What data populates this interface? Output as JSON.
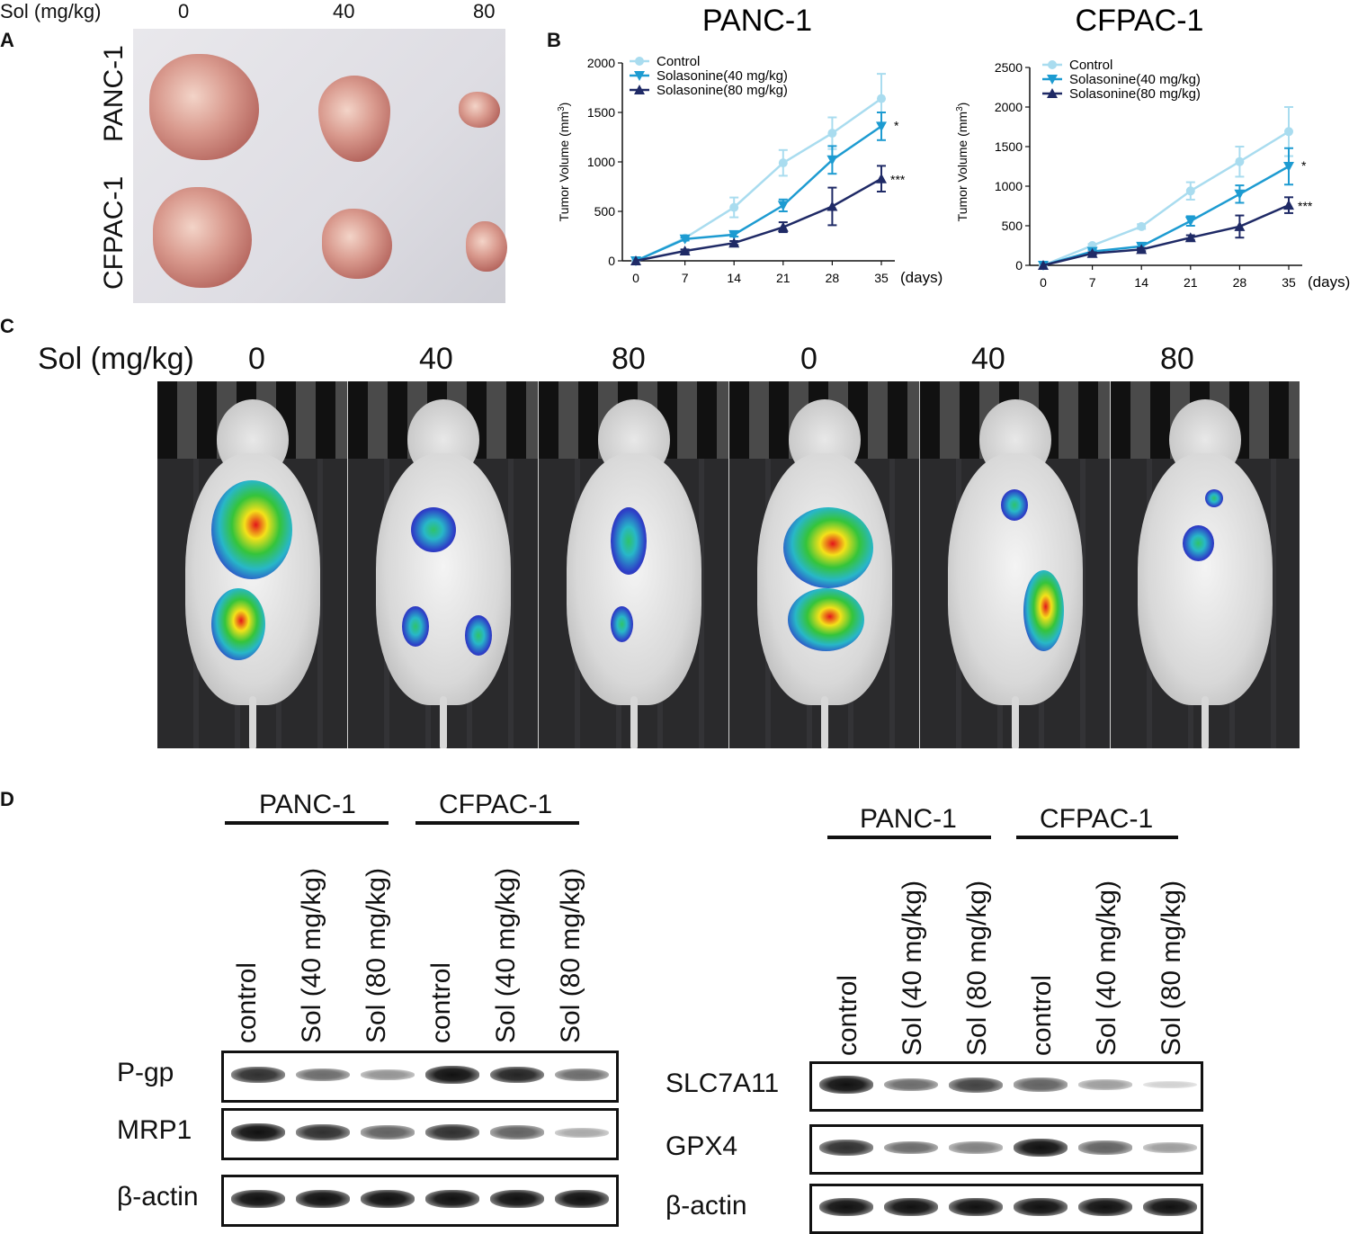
{
  "panelA": {
    "letter": "A",
    "dose_label": "Sol (mg/kg)",
    "doses": [
      "0",
      "40",
      "80"
    ],
    "rows": [
      "PANC-1",
      "CFPAC-1"
    ]
  },
  "panelB": {
    "letter": "B",
    "legend": [
      "Control",
      "Solasonine(40 mg/kg)",
      "Solasonine(80 mg/kg)"
    ],
    "colors": {
      "control": "#a9dcef",
      "sol40": "#1d9bd1",
      "sol80": "#1f2a66"
    },
    "days_unit": "(days)"
  },
  "chart_data": [
    {
      "type": "line",
      "title": "PANC-1",
      "xlabel": "(days)",
      "ylabel": "Tumor Volume (mm3)",
      "x": [
        0,
        7,
        14,
        21,
        28,
        35
      ],
      "ylim": [
        0,
        2000
      ],
      "yticks": [
        0,
        500,
        1000,
        1500,
        2000
      ],
      "series": [
        {
          "name": "Control",
          "values": [
            0,
            230,
            540,
            990,
            1290,
            1640
          ],
          "err": [
            0,
            20,
            100,
            130,
            160,
            250
          ]
        },
        {
          "name": "Solasonine(40 mg/kg)",
          "values": [
            0,
            220,
            265,
            560,
            1020,
            1360
          ],
          "err": [
            0,
            15,
            20,
            60,
            140,
            140
          ]
        },
        {
          "name": "Solasonine(80 mg/kg)",
          "values": [
            0,
            100,
            180,
            340,
            550,
            830
          ],
          "err": [
            0,
            15,
            20,
            50,
            190,
            130
          ]
        }
      ],
      "annotations": [
        "*",
        "***"
      ]
    },
    {
      "type": "line",
      "title": "CFPAC-1",
      "xlabel": "(days)",
      "ylabel": "Tumor Volume (mm3)",
      "x": [
        0,
        7,
        14,
        21,
        28,
        35
      ],
      "ylim": [
        0,
        2500
      ],
      "yticks": [
        0,
        500,
        1000,
        1500,
        2000,
        2500
      ],
      "series": [
        {
          "name": "Control",
          "values": [
            0,
            250,
            490,
            940,
            1310,
            1690
          ],
          "err": [
            0,
            20,
            30,
            110,
            190,
            310
          ]
        },
        {
          "name": "Solasonine(40 mg/kg)",
          "values": [
            0,
            175,
            240,
            560,
            900,
            1250
          ],
          "err": [
            0,
            20,
            30,
            60,
            110,
            230
          ]
        },
        {
          "name": "Solasonine(80 mg/kg)",
          "values": [
            0,
            150,
            200,
            350,
            490,
            760
          ],
          "err": [
            0,
            15,
            20,
            30,
            140,
            100
          ]
        }
      ],
      "annotations": [
        "*",
        "***"
      ]
    }
  ],
  "panelC": {
    "letter": "C",
    "dose_label": "Sol (mg/kg)",
    "doses": [
      "0",
      "40",
      "80",
      "0",
      "40",
      "80"
    ]
  },
  "panelD": {
    "letter": "D",
    "left": {
      "groups": [
        "PANC-1",
        "CFPAC-1"
      ],
      "lanes": [
        "control",
        "Sol (40 mg/kg)",
        "Sol (80 mg/kg)",
        "control",
        "Sol (40 mg/kg)",
        "Sol (80 mg/kg)"
      ],
      "blots": [
        {
          "name": "P-gp",
          "intensity": [
            0.85,
            0.55,
            0.35,
            1.0,
            0.9,
            0.55
          ]
        },
        {
          "name": "MRP1",
          "intensity": [
            1.0,
            0.85,
            0.6,
            0.85,
            0.6,
            0.25
          ]
        },
        {
          "name": "β-actin",
          "intensity": [
            1.0,
            1.0,
            1.0,
            1.0,
            1.0,
            1.0
          ]
        }
      ]
    },
    "right": {
      "groups": [
        "PANC-1",
        "CFPAC-1"
      ],
      "lanes": [
        "control",
        "Sol (40 mg/kg)",
        "Sol (80 mg/kg)",
        "control",
        "Sol (40 mg/kg)",
        "Sol (80 mg/kg)"
      ],
      "blots": [
        {
          "name": "SLC7A11",
          "intensity": [
            1.0,
            0.55,
            0.75,
            0.6,
            0.3,
            0.05
          ]
        },
        {
          "name": "GPX4",
          "intensity": [
            0.85,
            0.55,
            0.45,
            1.0,
            0.6,
            0.3
          ]
        },
        {
          "name": "β-actin",
          "intensity": [
            1.0,
            1.0,
            1.0,
            1.0,
            1.0,
            1.0
          ]
        }
      ]
    }
  }
}
